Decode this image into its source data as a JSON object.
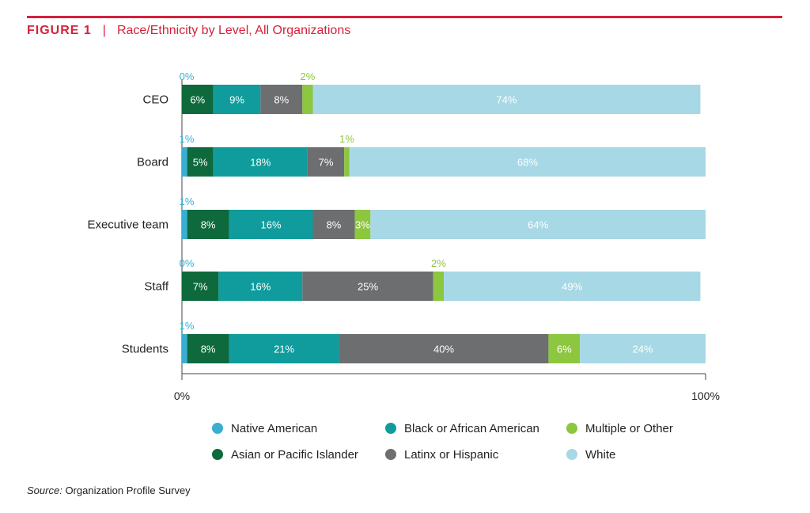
{
  "header": {
    "figure_label": "FIGURE 1",
    "separator": "|",
    "title": "Race/Ethnicity by Level, All Organizations"
  },
  "chart_data": {
    "type": "bar",
    "orientation": "horizontal",
    "stacked": true,
    "title": "Race/Ethnicity by Level, All Organizations",
    "categories": [
      "CEO",
      "Board",
      "Executive team",
      "Staff",
      "Students"
    ],
    "xlim": [
      0,
      100
    ],
    "x_ticks": [
      "0%",
      "100%"
    ],
    "grid": false,
    "legend_position": "bottom",
    "series": [
      {
        "name": "Native American",
        "color": "#3aaed3",
        "values": [
          0,
          1,
          1,
          0,
          1
        ],
        "labels": [
          "0%",
          "1%",
          "1%",
          "0%",
          "1%"
        ]
      },
      {
        "name": "Asian or Pacific Islander",
        "color": "#0e6a3c",
        "values": [
          6,
          5,
          8,
          7,
          8
        ],
        "labels": [
          "6%",
          "5%",
          "8%",
          "7%",
          "8%"
        ]
      },
      {
        "name": "Black or African American",
        "color": "#109c9c",
        "values": [
          9,
          18,
          16,
          16,
          21
        ],
        "labels": [
          "9%",
          "18%",
          "16%",
          "16%",
          "21%"
        ]
      },
      {
        "name": "Latinx or Hispanic",
        "color": "#6c6e70",
        "values": [
          8,
          7,
          8,
          25,
          40
        ],
        "labels": [
          "8%",
          "7%",
          "8%",
          "25%",
          "40%"
        ]
      },
      {
        "name": "Multiple or Other",
        "color": "#8dc63f",
        "values": [
          2,
          1,
          3,
          2,
          6
        ],
        "labels": [
          "2%",
          "1%",
          "3%",
          "2%",
          "6%"
        ]
      },
      {
        "name": "White",
        "color": "#a7d8e5",
        "values": [
          74,
          68,
          64,
          49,
          24
        ],
        "labels": [
          "74%",
          "68%",
          "64%",
          "49%",
          "24%"
        ]
      }
    ]
  },
  "source": {
    "label": "Source:",
    "text": "Organization Profile Survey"
  }
}
